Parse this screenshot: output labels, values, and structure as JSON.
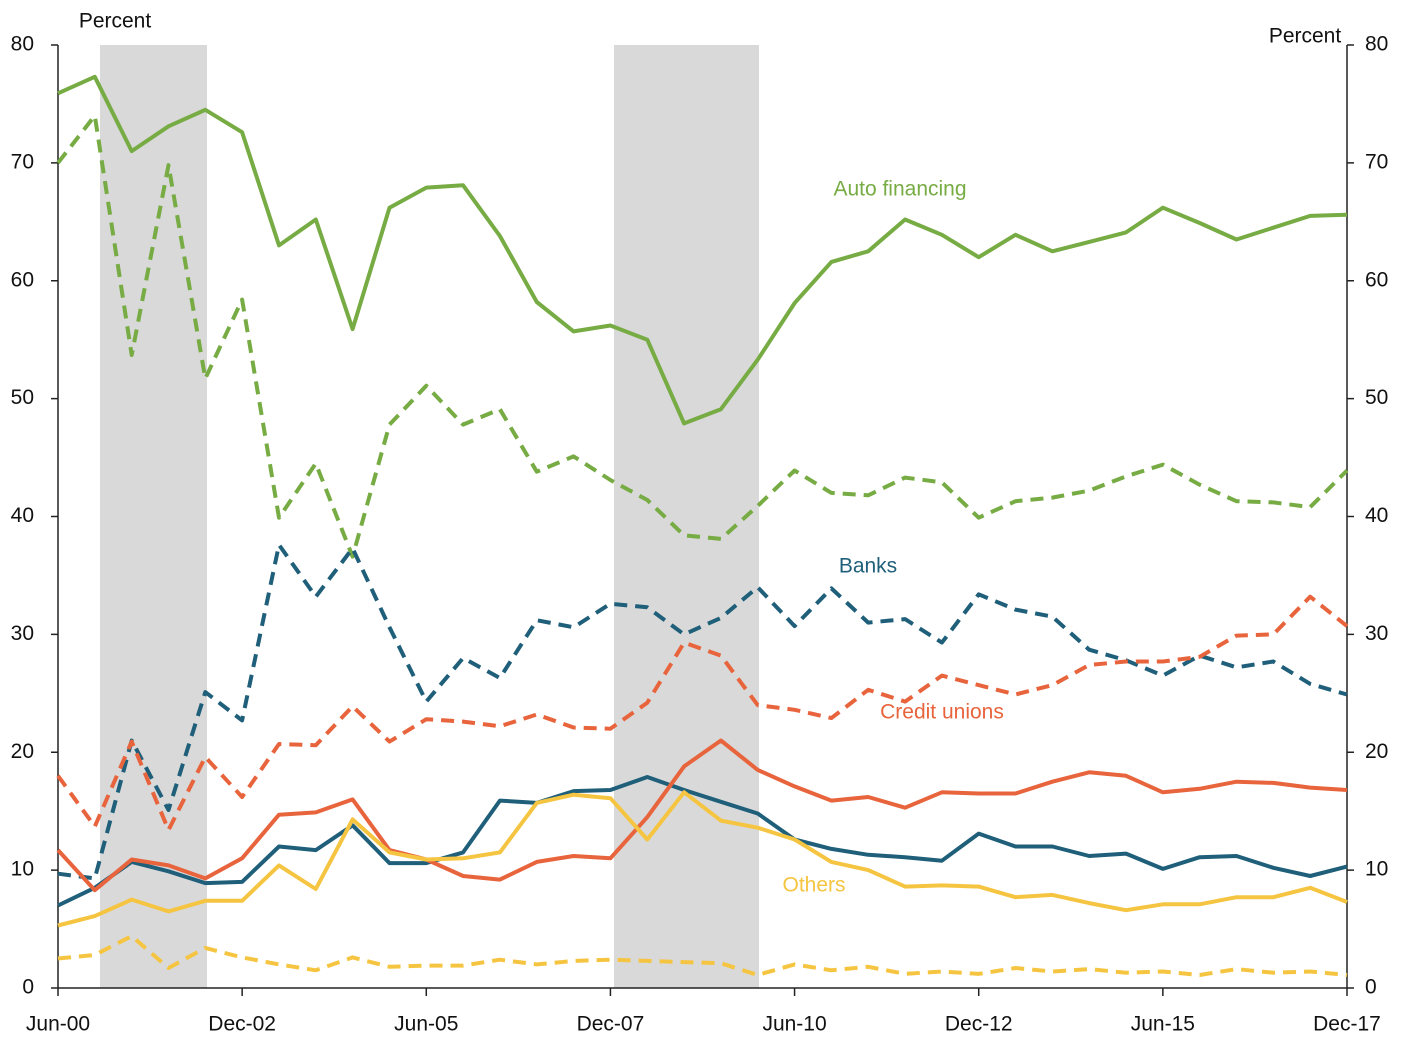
{
  "chart_data": {
    "type": "line",
    "ylabel": "Percent",
    "y2label": "Percent",
    "categories": [
      "Jun-00",
      null,
      null,
      null,
      null,
      "Dec-02",
      null,
      null,
      null,
      null,
      "Jun-05",
      null,
      null,
      null,
      null,
      "Dec-07",
      null,
      null,
      null,
      null,
      "Jun-10",
      null,
      null,
      null,
      null,
      "Dec-12",
      null,
      null,
      null,
      null,
      "Jun-15",
      null,
      null,
      null,
      null,
      "Dec-17"
    ],
    "ylim": [
      0,
      80
    ],
    "yticks": [
      0,
      10,
      20,
      30,
      40,
      50,
      60,
      70,
      80
    ],
    "y2lim": [
      0,
      80
    ],
    "y2ticks": [
      0,
      10,
      20,
      30,
      40,
      50,
      60,
      70,
      80
    ],
    "series": [
      {
        "name": "Auto financing",
        "color": "#77ab43",
        "dashed": false,
        "values": [
          75.9,
          77.3,
          71.0,
          73.1,
          74.5,
          72.6,
          63.0,
          65.2,
          55.9,
          66.2,
          67.9,
          68.1,
          63.8,
          58.2,
          55.7,
          56.2,
          55.0,
          47.9,
          49.1,
          53.3,
          58.1,
          61.6,
          62.5,
          65.2,
          63.9,
          62.0,
          63.9,
          62.5,
          63.3,
          64.1,
          66.2,
          64.9,
          63.5,
          64.5,
          65.5,
          65.6
        ]
      },
      {
        "color": "#77ab43",
        "dashed": true,
        "values": [
          70.0,
          74.0,
          53.7,
          69.8,
          51.7,
          58.4,
          39.9,
          44.5,
          36.6,
          47.8,
          51.1,
          47.8,
          49.1,
          43.8,
          45.1,
          43.1,
          41.4,
          38.4,
          38.1,
          40.9,
          43.9,
          42.0,
          41.8,
          43.3,
          42.9,
          39.9,
          41.3,
          41.6,
          42.2,
          43.4,
          44.4,
          42.7,
          41.3,
          41.2,
          40.8,
          43.9
        ]
      },
      {
        "name": "Banks",
        "color": "#1f5f7a",
        "dashed": true,
        "values": [
          9.7,
          9.3,
          21.0,
          15.1,
          25.1,
          22.7,
          37.6,
          33.2,
          37.3,
          30.6,
          24.3,
          28.0,
          26.3,
          31.2,
          30.6,
          32.6,
          32.3,
          30.0,
          31.4,
          34.0,
          30.7,
          33.9,
          31.0,
          31.3,
          29.3,
          33.4,
          32.1,
          31.5,
          28.7,
          27.8,
          26.5,
          28.2,
          27.2,
          27.7,
          25.8,
          24.9
        ]
      },
      {
        "color": "#1f5f7a",
        "dashed": false,
        "values": [
          7.0,
          8.5,
          10.7,
          9.9,
          8.9,
          9.0,
          12.0,
          11.7,
          13.8,
          10.6,
          10.6,
          11.5,
          15.9,
          15.7,
          16.7,
          16.8,
          17.9,
          16.8,
          15.8,
          14.8,
          12.6,
          11.8,
          11.3,
          11.1,
          10.8,
          13.1,
          12.0,
          12.0,
          11.2,
          11.4,
          10.1,
          11.1,
          11.2,
          10.2,
          9.5,
          10.3
        ]
      },
      {
        "name": "Credit unions",
        "color": "#e8643c",
        "dashed": true,
        "values": [
          18.0,
          13.7,
          20.9,
          13.4,
          19.6,
          16.2,
          20.7,
          20.6,
          23.9,
          20.9,
          22.8,
          22.6,
          22.2,
          23.2,
          22.1,
          22.0,
          24.2,
          29.3,
          28.2,
          24.0,
          23.6,
          22.9,
          25.3,
          24.3,
          26.5,
          25.7,
          24.9,
          25.7,
          27.4,
          27.7,
          27.7,
          28.1,
          29.9,
          30.0,
          33.2,
          30.7
        ]
      },
      {
        "color": "#e8643c",
        "dashed": false,
        "values": [
          11.7,
          8.3,
          10.9,
          10.4,
          9.3,
          11.0,
          14.7,
          14.9,
          16.0,
          11.7,
          10.9,
          9.5,
          9.2,
          10.7,
          11.2,
          11.0,
          14.5,
          18.8,
          21.0,
          18.5,
          17.1,
          15.9,
          16.2,
          15.3,
          16.6,
          16.5,
          16.5,
          17.5,
          18.3,
          18.0,
          16.6,
          16.9,
          17.5,
          17.4,
          17.0,
          16.8
        ]
      },
      {
        "name": "Others",
        "color": "#f5c542",
        "dashed": false,
        "values": [
          5.3,
          6.1,
          7.5,
          6.5,
          7.4,
          7.4,
          10.4,
          8.4,
          14.3,
          11.5,
          10.9,
          11.0,
          11.5,
          15.7,
          16.4,
          16.1,
          12.6,
          16.6,
          14.2,
          13.6,
          12.6,
          10.7,
          10.0,
          8.6,
          8.7,
          8.6,
          7.7,
          7.9,
          7.2,
          6.6,
          7.1,
          7.1,
          7.7,
          7.7,
          8.5,
          7.3
        ]
      },
      {
        "color": "#f5c542",
        "dashed": true,
        "values": [
          2.5,
          2.8,
          4.4,
          1.7,
          3.4,
          2.6,
          2.0,
          1.5,
          2.6,
          1.8,
          1.9,
          1.9,
          2.4,
          2.0,
          2.3,
          2.4,
          2.3,
          2.2,
          2.1,
          1.1,
          2.0,
          1.5,
          1.8,
          1.2,
          1.4,
          1.2,
          1.7,
          1.4,
          1.6,
          1.3,
          1.4,
          1.1,
          1.6,
          1.3,
          1.4,
          1.1
        ]
      }
    ]
  }
}
